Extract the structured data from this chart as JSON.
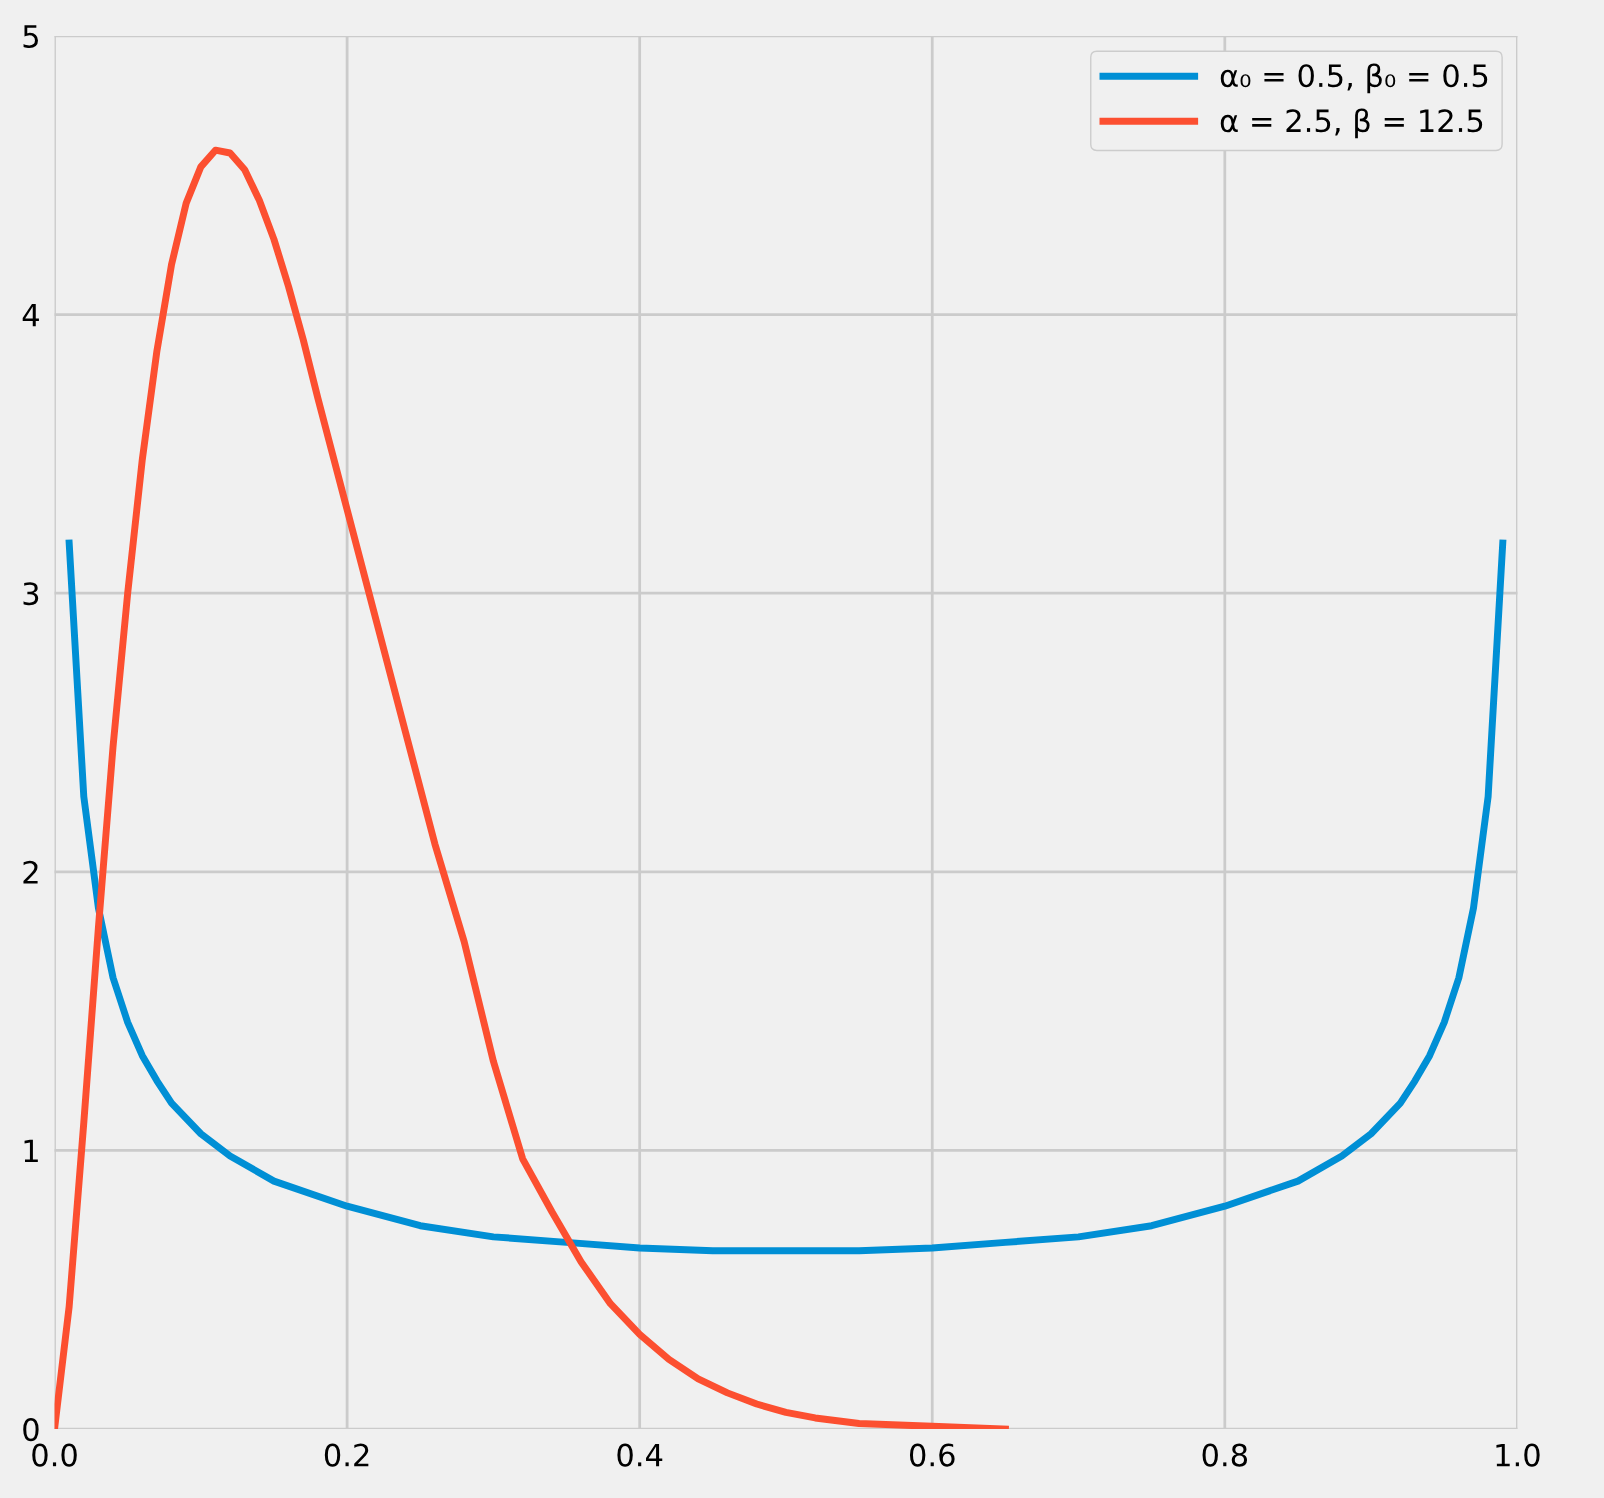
{
  "chart_data": {
    "type": "line",
    "xlim": [
      0,
      1
    ],
    "ylim": [
      0,
      5
    ],
    "xticks": [
      {
        "value": 0,
        "label": "0.0"
      },
      {
        "value": 0.2,
        "label": "0.2"
      },
      {
        "value": 0.4,
        "label": "0.4"
      },
      {
        "value": 0.6,
        "label": "0.6"
      },
      {
        "value": 0.8,
        "label": "0.8"
      },
      {
        "value": 1,
        "label": "1.0"
      }
    ],
    "yticks": [
      0,
      1,
      2,
      3,
      4,
      5
    ],
    "grid": true,
    "legend": "top right",
    "marker": "none",
    "line_style": "solid",
    "series": [
      {
        "name": "α₀ = 0.5, β₀ = 0.5",
        "color": "#008fd5",
        "x": [
          0.01,
          0.02,
          0.03,
          0.04,
          0.05,
          0.06,
          0.07,
          0.08,
          0.1,
          0.12,
          0.15,
          0.2,
          0.25,
          0.3,
          0.35,
          0.4,
          0.45,
          0.5,
          0.55,
          0.6,
          0.65,
          0.7,
          0.75,
          0.8,
          0.85,
          0.88,
          0.9,
          0.92,
          0.93,
          0.94,
          0.95,
          0.96,
          0.97,
          0.98,
          0.99
        ],
        "values": [
          3.18,
          2.27,
          1.87,
          1.62,
          1.46,
          1.34,
          1.25,
          1.17,
          1.06,
          0.98,
          0.89,
          0.8,
          0.73,
          0.69,
          0.67,
          0.65,
          0.64,
          0.64,
          0.64,
          0.65,
          0.67,
          0.69,
          0.73,
          0.8,
          0.89,
          0.98,
          1.06,
          1.17,
          1.25,
          1.34,
          1.46,
          1.62,
          1.87,
          2.27,
          3.18
        ]
      },
      {
        "name": "α = 2.5, β = 12.5",
        "color": "#fc4f30",
        "x": [
          0,
          0.01,
          0.02,
          0.03,
          0.04,
          0.05,
          0.06,
          0.07,
          0.08,
          0.09,
          0.1,
          0.11,
          0.12,
          0.13,
          0.14,
          0.15,
          0.16,
          0.17,
          0.18,
          0.19,
          0.2,
          0.22,
          0.24,
          0.26,
          0.28,
          0.3,
          0.32,
          0.34,
          0.36,
          0.38,
          0.4,
          0.42,
          0.44,
          0.46,
          0.48,
          0.5,
          0.52,
          0.55,
          0.6,
          0.65
        ],
        "values": [
          0,
          0.44,
          1.1,
          1.8,
          2.45,
          3.0,
          3.48,
          3.87,
          4.18,
          4.4,
          4.53,
          4.59,
          4.58,
          4.52,
          4.41,
          4.27,
          4.1,
          3.91,
          3.7,
          3.5,
          3.3,
          2.9,
          2.5,
          2.1,
          1.75,
          1.32,
          0.97,
          0.78,
          0.6,
          0.45,
          0.34,
          0.25,
          0.18,
          0.13,
          0.09,
          0.06,
          0.04,
          0.02,
          0.01,
          0
        ]
      }
    ]
  }
}
